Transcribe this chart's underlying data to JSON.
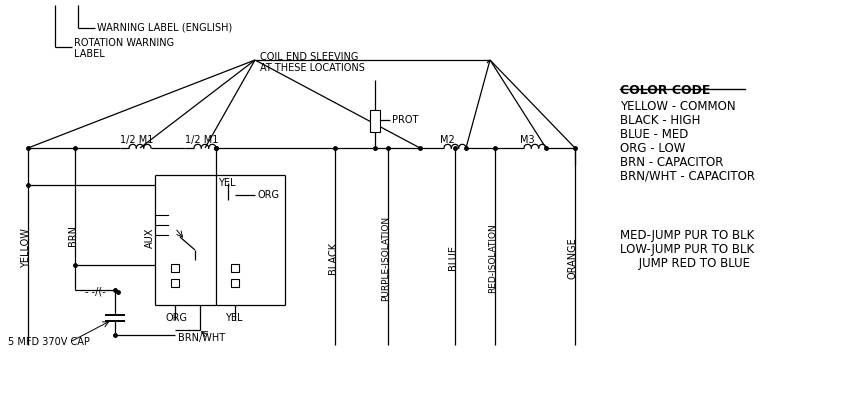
{
  "bg_color": "#ffffff",
  "color_code": {
    "title": "COLOR CODE",
    "entries": [
      "YELLOW - COMMON",
      "BLACK - HIGH",
      "BLUE - MED",
      "ORG - LOW",
      "BRN - CAPACITOR",
      "BRN/WHT - CAPACITOR"
    ],
    "notes": [
      "MED-JUMP PUR TO BLK",
      "LOW-JUMP PUR TO BLK",
      "     JUMP RED TO BLUE"
    ]
  },
  "warning_label": "WARNING LABEL (ENGLISH)",
  "rotation_warning": "ROTATION WARNING",
  "rotation_label": "LABEL",
  "coil_end_line1": "COIL END SLEEVING",
  "coil_end_line2": "AT THESE LOCATIONS",
  "prot": "PROT",
  "m2": "M2",
  "m3": "M3",
  "half_m1": "1/2 M1",
  "yel": "YEL",
  "org": "ORG",
  "aux": "AUX",
  "brn_wht": "BRN/WHT",
  "cap_label": "5 MFD 370V CAP",
  "black_wire": "BLACK",
  "purple_wire": "PURPLE-ISOLATION",
  "blue_wire": "BLUE",
  "red_wire": "RED-ISOLATION",
  "orange_wire": "ORANGE",
  "yellow_wire": "YELLOW",
  "brn_wire": "BRN"
}
